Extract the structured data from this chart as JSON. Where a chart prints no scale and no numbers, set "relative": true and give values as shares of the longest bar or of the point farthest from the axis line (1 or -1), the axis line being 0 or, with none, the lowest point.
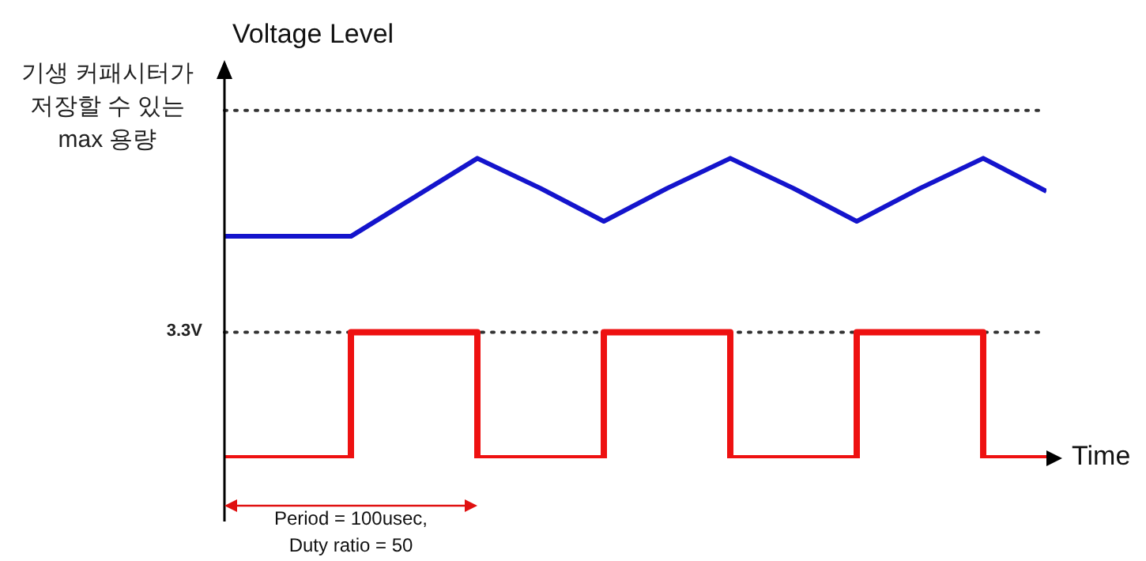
{
  "chart_data": {
    "type": "line",
    "relative": true,
    "ylabel": "Voltage Level",
    "xlabel": "Time",
    "marker": "none",
    "categories": [
      null,
      null,
      null,
      null,
      null,
      null,
      null,
      null,
      null,
      null,
      null,
      null,
      null,
      null
    ],
    "series": [
      {
        "color": "#1414cc",
        "values": [
          0.74,
          0.74,
          0.74,
          0.87,
          1,
          0.9,
          0.79,
          0.9,
          1,
          0.9,
          0.79,
          0.9,
          1,
          0.89
        ]
      },
      {
        "type": "step",
        "color": "#ee1111",
        "values": [
          0,
          0,
          0.42,
          0.42,
          0,
          0,
          0.42,
          0.42,
          0,
          0,
          0.42,
          0.42,
          0,
          0
        ]
      }
    ],
    "ref_lines": [
      {
        "axis": "y",
        "value": 1.16,
        "label": "기생 커패시터가\n저장할 수 있는\nmax 용량",
        "color": "#333333",
        "line_style": "dotted"
      },
      {
        "axis": "y",
        "value": 0.42,
        "label": "3.3V",
        "color": "#333333",
        "line_style": "dotted"
      }
    ],
    "annotations": [
      "Period = 100usec,\nDuty ratio = 50"
    ]
  }
}
